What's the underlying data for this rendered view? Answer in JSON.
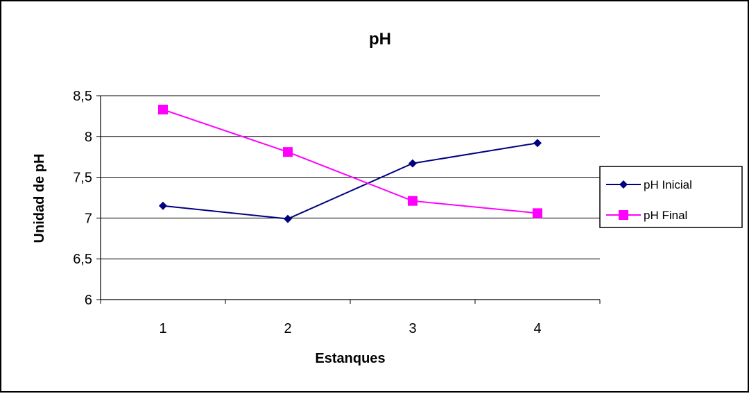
{
  "chart_data": {
    "type": "line",
    "title": "pH",
    "xlabel": "Estanques",
    "ylabel": "Unidad de pH",
    "categories": [
      "1",
      "2",
      "3",
      "4"
    ],
    "yticks": [
      "6",
      "6,5",
      "7",
      "7,5",
      "8",
      "8,5"
    ],
    "ylim": [
      6,
      8.5
    ],
    "grid": true,
    "legend_position": "right",
    "series": [
      {
        "name": "pH Inicial",
        "values": [
          7.15,
          6.99,
          7.67,
          7.92
        ],
        "color": "#000080",
        "marker": "diamond"
      },
      {
        "name": "pH Final",
        "values": [
          8.33,
          7.81,
          7.21,
          7.06
        ],
        "color": "#FF00FF",
        "marker": "square"
      }
    ]
  }
}
